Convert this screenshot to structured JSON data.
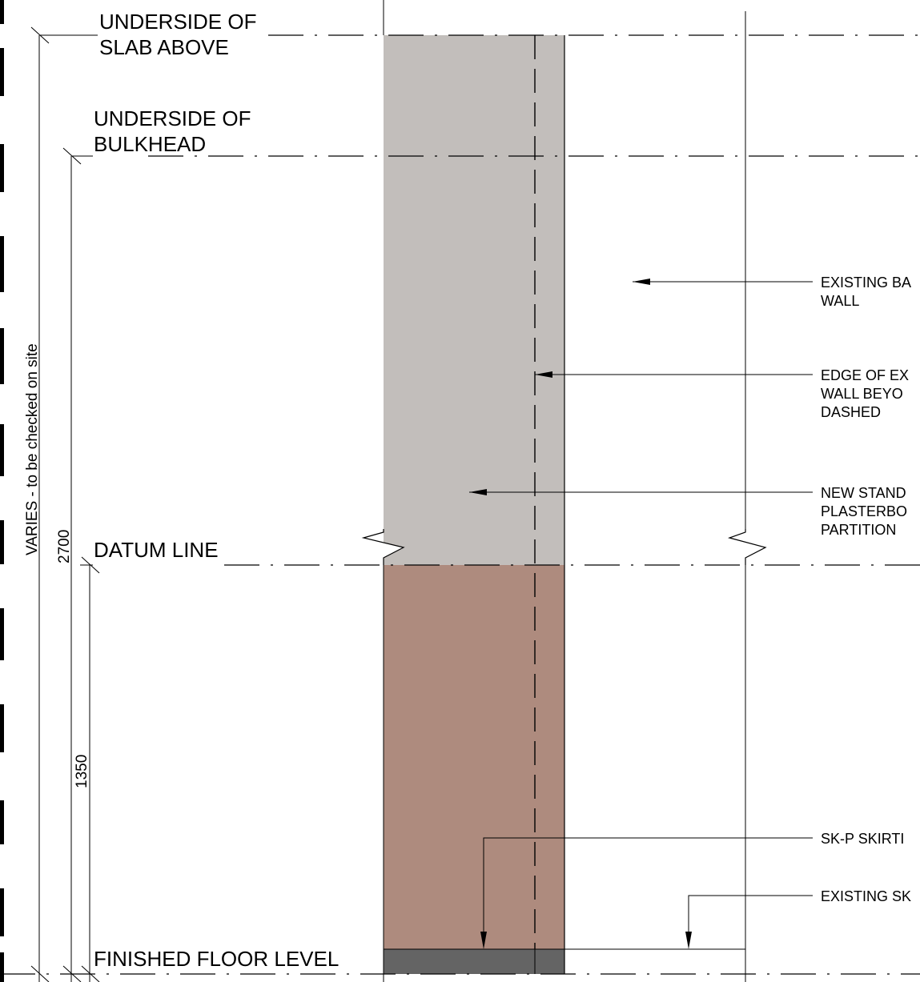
{
  "levels": {
    "slab": [
      "UNDERSIDE OF",
      "SLAB ABOVE"
    ],
    "bulkhead": [
      "UNDERSIDE OF",
      "BULKHEAD"
    ],
    "datum": "DATUM LINE",
    "ffl": "FINISHED FLOOR LEVEL"
  },
  "dimensions": {
    "varies": "VARIES - to be checked on site",
    "d2700": "2700",
    "d1350": "1350"
  },
  "callouts": {
    "existing_wall": [
      "EXISTING BA",
      "WALL"
    ],
    "edge_wall": [
      "EDGE OF EX",
      "WALL BEYO",
      "DASHED"
    ],
    "new_partition": [
      "NEW STAND",
      "PLASTERBO",
      "PARTITION"
    ],
    "skp_skirting": "SK-P SKIRTI",
    "existing_skirting": "EXISTING SK"
  },
  "colors": {
    "upper_partition": "#c2bebb",
    "lower_partition": "#ae8b7e",
    "skirting": "#646464"
  }
}
